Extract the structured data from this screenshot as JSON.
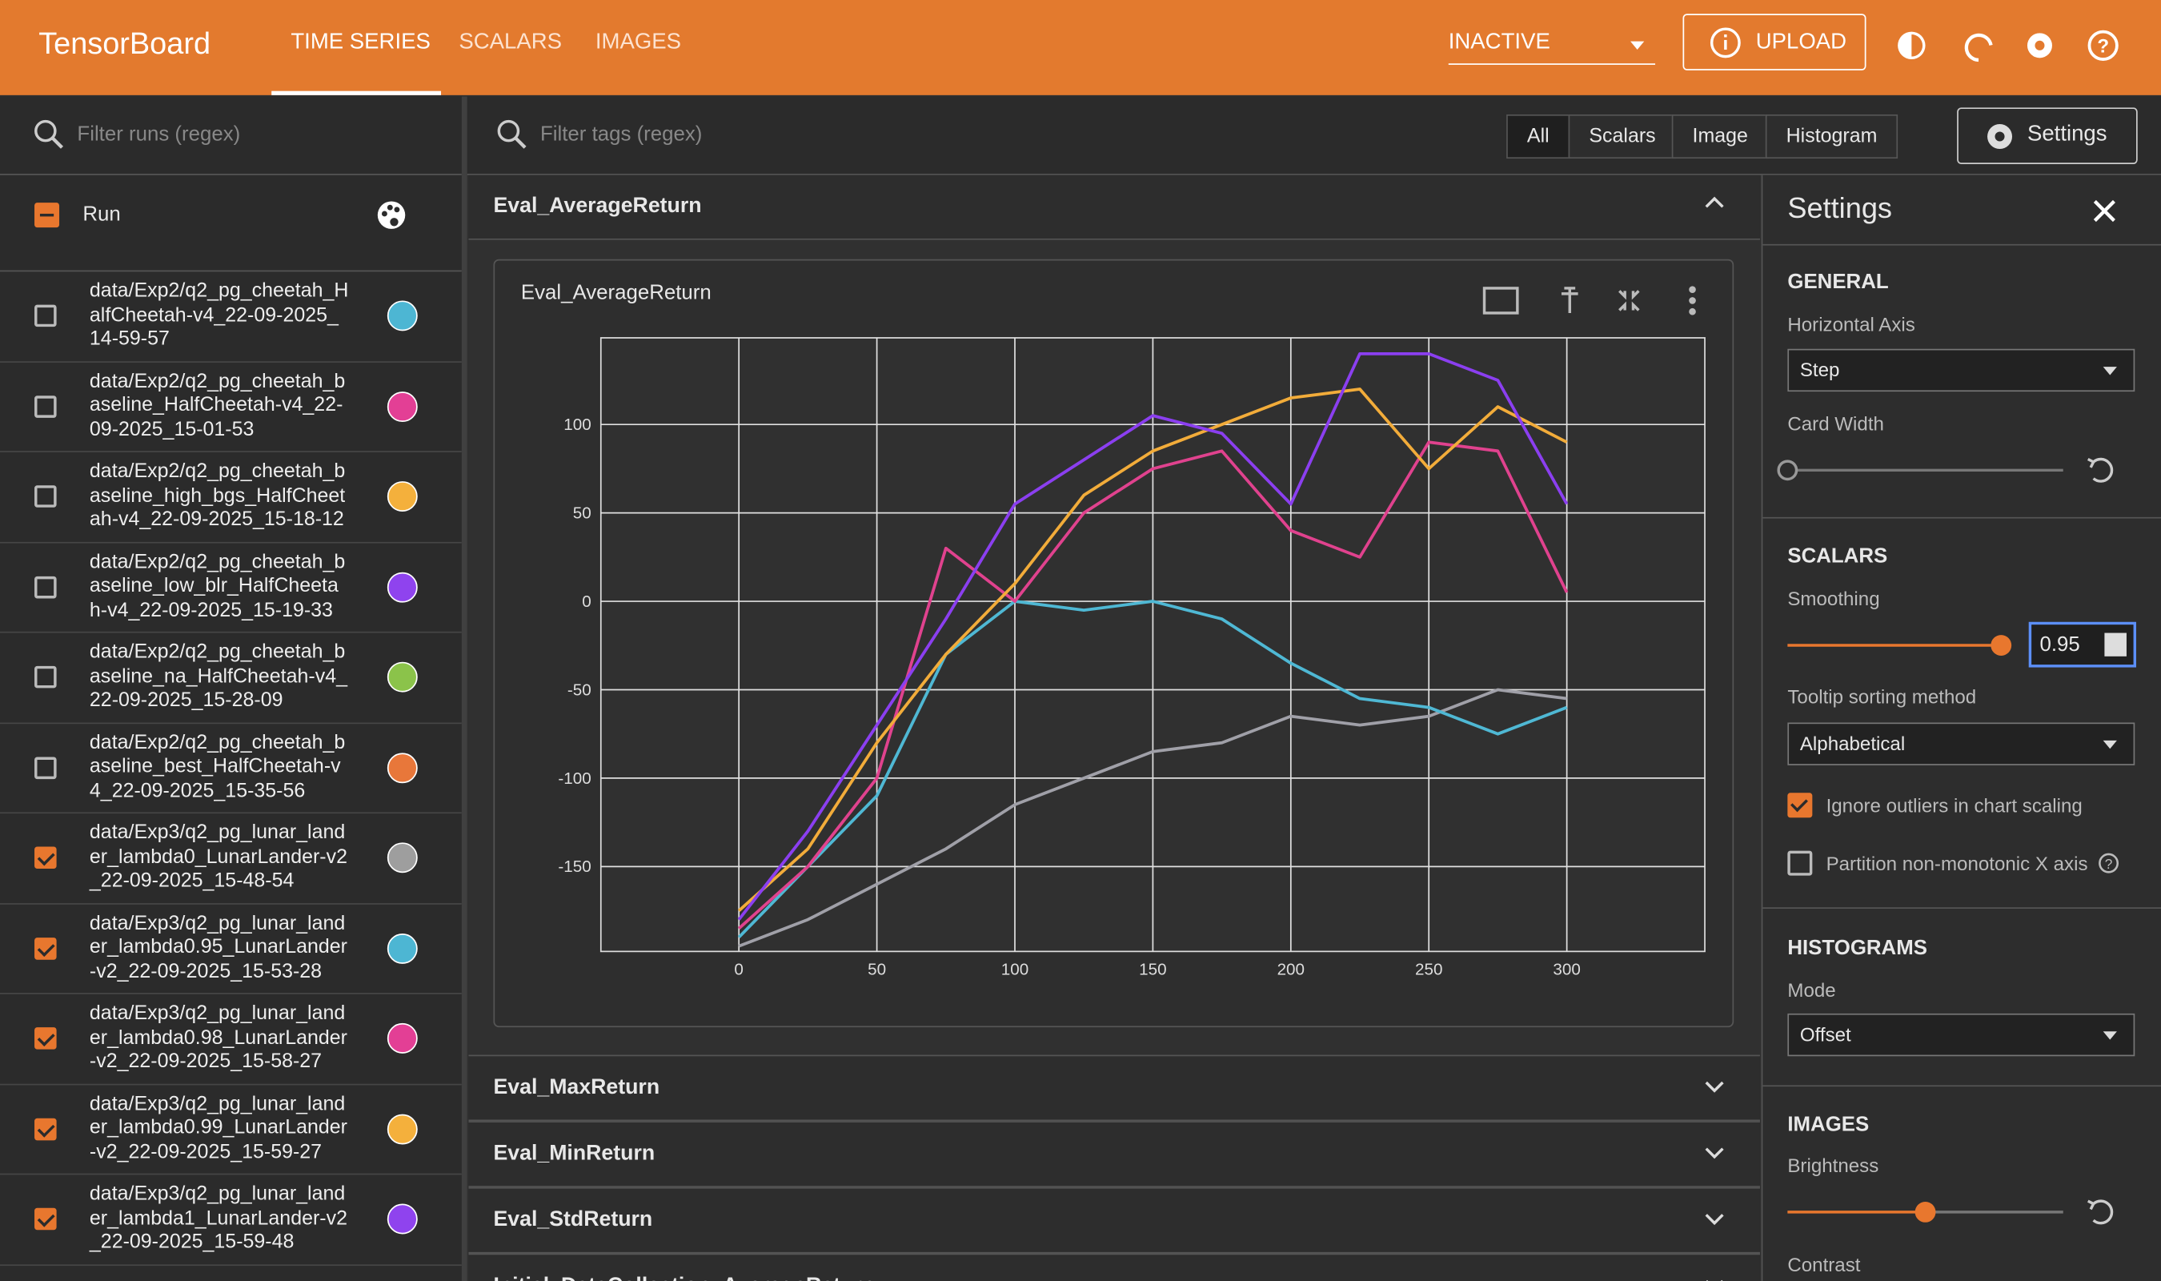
{
  "header": {
    "title": "TensorBoard",
    "tabs": [
      "TIME SERIES",
      "SCALARS",
      "IMAGES"
    ],
    "run_state": "INACTIVE",
    "upload": "UPLOAD"
  },
  "runs_panel": {
    "filter_placeholder": "Filter runs (regex)",
    "column": "Run",
    "runs": [
      {
        "name": "data/Exp2/q2_pg_cheetah_HalfCheetah-v4_22-09-2025_14-59-57",
        "checked": false,
        "color": "#4db6d3"
      },
      {
        "name": "data/Exp2/q2_pg_cheetah_baseline_HalfCheetah-v4_22-09-2025_15-01-53",
        "checked": false,
        "color": "#e33f95"
      },
      {
        "name": "data/Exp2/q2_pg_cheetah_baseline_high_bgs_HalfCheetah-v4_22-09-2025_15-18-12",
        "checked": false,
        "color": "#f4b03c"
      },
      {
        "name": "data/Exp2/q2_pg_cheetah_baseline_low_blr_HalfCheetah-v4_22-09-2025_15-19-33",
        "checked": false,
        "color": "#8f43ee"
      },
      {
        "name": "data/Exp2/q2_pg_cheetah_baseline_na_HalfCheetah-v4_22-09-2025_15-28-09",
        "checked": false,
        "color": "#8bc34a"
      },
      {
        "name": "data/Exp2/q2_pg_cheetah_baseline_best_HalfCheetah-v4_22-09-2025_15-35-56",
        "checked": false,
        "color": "#e8773a"
      },
      {
        "name": "data/Exp3/q2_pg_lunar_lander_lambda0_LunarLander-v2_22-09-2025_15-48-54",
        "checked": true,
        "color": "#9e9e9e"
      },
      {
        "name": "data/Exp3/q2_pg_lunar_lander_lambda0.95_LunarLander-v2_22-09-2025_15-53-28",
        "checked": true,
        "color": "#4db6d3"
      },
      {
        "name": "data/Exp3/q2_pg_lunar_lander_lambda0.98_LunarLander-v2_22-09-2025_15-58-27",
        "checked": true,
        "color": "#e33f95"
      },
      {
        "name": "data/Exp3/q2_pg_lunar_lander_lambda0.99_LunarLander-v2_22-09-2025_15-59-27",
        "checked": true,
        "color": "#f4b03c"
      },
      {
        "name": "data/Exp3/q2_pg_lunar_lander_lambda1_LunarLander-v2_22-09-2025_15-59-48",
        "checked": true,
        "color": "#8f43ee"
      }
    ]
  },
  "main": {
    "filter_placeholder": "Filter tags (regex)",
    "chips": [
      "All",
      "Scalars",
      "Image",
      "Histogram"
    ],
    "settings_button": "Settings",
    "group": "Eval_AverageReturn",
    "sections": [
      "Eval_MaxReturn",
      "Eval_MinReturn",
      "Eval_StdReturn",
      "Initial_DataCollection_AverageReturn"
    ]
  },
  "settings": {
    "title": "Settings",
    "general": "GENERAL",
    "horizontal_axis": "Horizontal Axis",
    "horizontal_axis_value": "Step",
    "card_width": "Card Width",
    "scalars": "SCALARS",
    "smoothing": "Smoothing",
    "smoothing_value": "0.95",
    "tooltip_sort": "Tooltip sorting method",
    "tooltip_sort_value": "Alphabetical",
    "ignore_outliers": "Ignore outliers in chart scaling",
    "partition": "Partition non-monotonic X axis",
    "histograms": "HISTOGRAMS",
    "mode": "Mode",
    "mode_value": "Offset",
    "images": "IMAGES",
    "brightness": "Brightness",
    "contrast": "Contrast"
  },
  "chart_data": {
    "type": "line",
    "title": "Eval_AverageReturn",
    "x": [
      0,
      25,
      50,
      75,
      100,
      125,
      150,
      175,
      200,
      225,
      250,
      275,
      300
    ],
    "series": [
      {
        "color": "#a0a0a8",
        "values": [
          -195,
          -180,
          -160,
          -140,
          -115,
          -100,
          -85,
          -80,
          -65,
          -70,
          -65,
          -50,
          -55
        ]
      },
      {
        "color": "#4fb8d4",
        "values": [
          -190,
          -150,
          -110,
          -30,
          0,
          -5,
          0,
          -10,
          -35,
          -55,
          -60,
          -75,
          -60
        ]
      },
      {
        "color": "#e0428e",
        "values": [
          -185,
          -150,
          -100,
          30,
          0,
          50,
          75,
          85,
          40,
          25,
          90,
          85,
          5
        ]
      },
      {
        "color": "#f2ac3a",
        "values": [
          -175,
          -140,
          -80,
          -30,
          10,
          60,
          85,
          100,
          115,
          120,
          75,
          110,
          90
        ]
      },
      {
        "color": "#8b3ff0",
        "values": [
          -180,
          -130,
          -70,
          -10,
          55,
          80,
          105,
          95,
          55,
          140,
          140,
          125,
          55
        ]
      }
    ],
    "xlim": [
      -50,
      350
    ],
    "ylim": [
      -198,
      149
    ],
    "xticks": [
      0,
      50,
      100,
      150,
      200,
      250,
      300
    ],
    "yticks": [
      -150,
      -100,
      -50,
      0,
      50,
      100
    ],
    "grid": true
  }
}
